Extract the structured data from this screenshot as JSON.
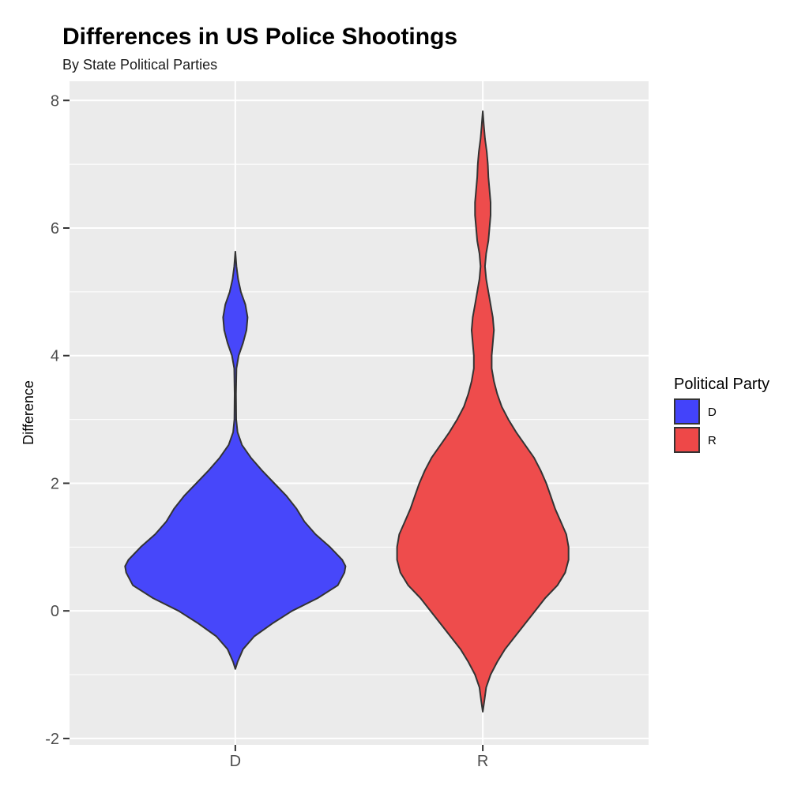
{
  "chart_data": {
    "type": "violin",
    "title": "Differences in US Police Shootings",
    "subtitle": "By State Political Parties",
    "xlabel": "",
    "ylabel": "Difference",
    "categories": [
      "D",
      "R"
    ],
    "ylim": [
      -2.1,
      8.3
    ],
    "yticks": [
      -2,
      0,
      2,
      4,
      6,
      8
    ],
    "grid": true,
    "legend": {
      "title": "Political Party",
      "placement": "right",
      "entries": [
        {
          "label": "D",
          "color": "#4343FA"
        },
        {
          "label": "R",
          "color": "#EE4848"
        }
      ]
    },
    "series": [
      {
        "category": "D",
        "color": "#4343FA",
        "y_range": [
          -0.91,
          5.63
        ],
        "profile": [
          {
            "y": -0.91,
            "hw": 0.0
          },
          {
            "y": -0.8,
            "hw": 0.02
          },
          {
            "y": -0.6,
            "hw": 0.07
          },
          {
            "y": -0.4,
            "hw": 0.17
          },
          {
            "y": -0.2,
            "hw": 0.33
          },
          {
            "y": 0.0,
            "hw": 0.51
          },
          {
            "y": 0.2,
            "hw": 0.74
          },
          {
            "y": 0.4,
            "hw": 0.92
          },
          {
            "y": 0.6,
            "hw": 0.98
          },
          {
            "y": 0.7,
            "hw": 0.99
          },
          {
            "y": 0.8,
            "hw": 0.96
          },
          {
            "y": 1.0,
            "hw": 0.85
          },
          {
            "y": 1.2,
            "hw": 0.72
          },
          {
            "y": 1.4,
            "hw": 0.62
          },
          {
            "y": 1.6,
            "hw": 0.55
          },
          {
            "y": 1.8,
            "hw": 0.46
          },
          {
            "y": 2.0,
            "hw": 0.35
          },
          {
            "y": 2.2,
            "hw": 0.24
          },
          {
            "y": 2.4,
            "hw": 0.14
          },
          {
            "y": 2.6,
            "hw": 0.06
          },
          {
            "y": 2.8,
            "hw": 0.02
          },
          {
            "y": 3.0,
            "hw": 0.008
          },
          {
            "y": 3.4,
            "hw": 0.006
          },
          {
            "y": 3.8,
            "hw": 0.01
          },
          {
            "y": 4.0,
            "hw": 0.03
          },
          {
            "y": 4.2,
            "hw": 0.07
          },
          {
            "y": 4.4,
            "hw": 0.1
          },
          {
            "y": 4.6,
            "hw": 0.11
          },
          {
            "y": 4.8,
            "hw": 0.09
          },
          {
            "y": 5.0,
            "hw": 0.05
          },
          {
            "y": 5.2,
            "hw": 0.025
          },
          {
            "y": 5.4,
            "hw": 0.01
          },
          {
            "y": 5.63,
            "hw": 0.0
          }
        ]
      },
      {
        "category": "R",
        "color": "#EE4848",
        "y_range": [
          -1.58,
          7.83
        ],
        "profile": [
          {
            "y": -1.58,
            "hw": 0.0
          },
          {
            "y": -1.4,
            "hw": 0.015
          },
          {
            "y": -1.2,
            "hw": 0.03
          },
          {
            "y": -1.0,
            "hw": 0.07
          },
          {
            "y": -0.8,
            "hw": 0.13
          },
          {
            "y": -0.6,
            "hw": 0.2
          },
          {
            "y": -0.4,
            "hw": 0.29
          },
          {
            "y": -0.2,
            "hw": 0.38
          },
          {
            "y": 0.0,
            "hw": 0.47
          },
          {
            "y": 0.2,
            "hw": 0.56
          },
          {
            "y": 0.4,
            "hw": 0.67
          },
          {
            "y": 0.6,
            "hw": 0.74
          },
          {
            "y": 0.8,
            "hw": 0.77
          },
          {
            "y": 1.0,
            "hw": 0.77
          },
          {
            "y": 1.2,
            "hw": 0.75
          },
          {
            "y": 1.4,
            "hw": 0.7
          },
          {
            "y": 1.6,
            "hw": 0.65
          },
          {
            "y": 1.8,
            "hw": 0.61
          },
          {
            "y": 2.0,
            "hw": 0.57
          },
          {
            "y": 2.2,
            "hw": 0.52
          },
          {
            "y": 2.4,
            "hw": 0.46
          },
          {
            "y": 2.6,
            "hw": 0.38
          },
          {
            "y": 2.8,
            "hw": 0.3
          },
          {
            "y": 3.0,
            "hw": 0.23
          },
          {
            "y": 3.2,
            "hw": 0.17
          },
          {
            "y": 3.4,
            "hw": 0.13
          },
          {
            "y": 3.6,
            "hw": 0.1
          },
          {
            "y": 3.8,
            "hw": 0.08
          },
          {
            "y": 4.0,
            "hw": 0.08
          },
          {
            "y": 4.2,
            "hw": 0.09
          },
          {
            "y": 4.4,
            "hw": 0.1
          },
          {
            "y": 4.6,
            "hw": 0.09
          },
          {
            "y": 4.8,
            "hw": 0.07
          },
          {
            "y": 5.0,
            "hw": 0.05
          },
          {
            "y": 5.2,
            "hw": 0.03
          },
          {
            "y": 5.4,
            "hw": 0.02
          },
          {
            "y": 5.6,
            "hw": 0.03
          },
          {
            "y": 5.8,
            "hw": 0.05
          },
          {
            "y": 6.0,
            "hw": 0.06
          },
          {
            "y": 6.2,
            "hw": 0.07
          },
          {
            "y": 6.4,
            "hw": 0.07
          },
          {
            "y": 6.6,
            "hw": 0.06
          },
          {
            "y": 6.8,
            "hw": 0.05
          },
          {
            "y": 7.0,
            "hw": 0.045
          },
          {
            "y": 7.2,
            "hw": 0.035
          },
          {
            "y": 7.4,
            "hw": 0.02
          },
          {
            "y": 7.6,
            "hw": 0.01
          },
          {
            "y": 7.83,
            "hw": 0.0
          }
        ]
      }
    ]
  }
}
